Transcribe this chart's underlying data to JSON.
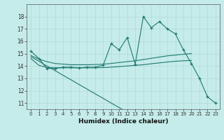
{
  "xlabel": "Humidex (Indice chaleur)",
  "background_color": "#c5ecea",
  "grid_color": "#b0d8d5",
  "line_color": "#1e7870",
  "x_values": [
    0,
    1,
    2,
    3,
    4,
    5,
    6,
    7,
    8,
    9,
    10,
    11,
    12,
    13,
    14,
    15,
    16,
    17,
    18,
    19,
    20,
    21,
    22,
    23
  ],
  "series1_y": [
    15.2,
    14.6,
    13.8,
    13.8,
    13.9,
    13.9,
    13.85,
    13.9,
    13.9,
    14.05,
    15.8,
    15.3,
    16.3,
    14.15,
    18.0,
    17.1,
    17.6,
    17.0,
    16.6,
    15.3,
    14.2,
    13.0,
    11.5,
    11.0
  ],
  "series2_x": [
    0,
    1,
    2,
    3,
    4,
    5,
    6,
    7,
    8,
    9,
    10,
    11,
    12,
    13,
    14,
    15,
    16,
    17,
    18,
    19,
    20
  ],
  "series2_y": [
    14.85,
    14.55,
    14.35,
    14.2,
    14.15,
    14.1,
    14.1,
    14.1,
    14.12,
    14.14,
    14.2,
    14.28,
    14.35,
    14.42,
    14.52,
    14.62,
    14.72,
    14.82,
    14.88,
    14.95,
    15.0
  ],
  "series3_x": [
    0,
    1,
    2,
    3,
    4,
    5,
    6,
    7,
    8,
    9,
    10,
    11,
    12,
    13,
    14,
    15,
    16,
    17,
    18,
    19,
    20
  ],
  "series3_y": [
    14.6,
    14.05,
    13.88,
    13.85,
    13.85,
    13.85,
    13.85,
    13.85,
    13.85,
    13.87,
    13.9,
    13.95,
    14.0,
    14.05,
    14.1,
    14.18,
    14.25,
    14.32,
    14.38,
    14.42,
    14.45
  ],
  "series4_x": [
    0,
    1,
    2,
    3,
    4,
    5,
    6,
    7,
    8,
    9,
    10,
    11,
    12,
    13,
    14,
    15,
    16,
    17,
    18,
    19,
    20,
    21,
    22,
    23
  ],
  "series4_y": [
    14.75,
    14.38,
    14.0,
    13.63,
    13.25,
    12.88,
    12.5,
    12.13,
    11.75,
    11.38,
    11.0,
    10.63,
    10.25,
    9.88,
    9.5,
    9.13,
    8.75,
    8.38,
    8.0,
    7.63,
    7.25,
    6.88,
    6.5,
    6.13
  ],
  "ylim": [
    10.5,
    19.0
  ],
  "xlim": [
    -0.5,
    23.5
  ],
  "yticks": [
    11,
    12,
    13,
    14,
    15,
    16,
    17,
    18
  ],
  "xticks": [
    0,
    1,
    2,
    3,
    4,
    5,
    6,
    7,
    8,
    9,
    10,
    11,
    12,
    13,
    14,
    15,
    16,
    17,
    18,
    19,
    20,
    21,
    22,
    23
  ]
}
